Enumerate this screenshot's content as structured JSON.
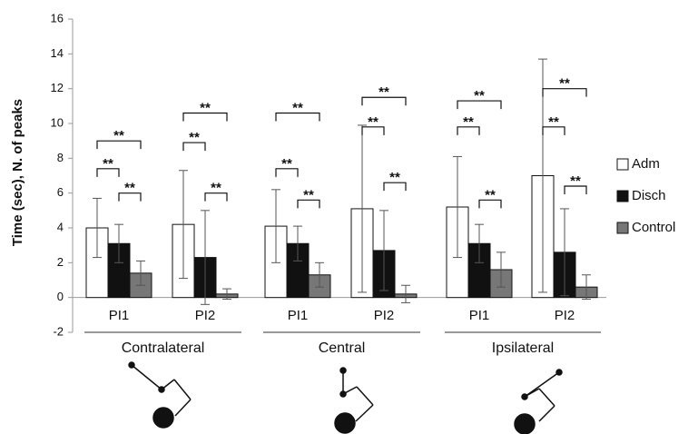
{
  "chart_data": {
    "type": "bar",
    "y_label": "Time (sec), N. of peaks",
    "categories": [
      "PI1",
      "PI2",
      "PI1",
      "PI2",
      "PI1",
      "PI2"
    ],
    "groups": [
      "Contralateral",
      "Central",
      "Ipsilateral"
    ],
    "series": [
      {
        "name": "Adm",
        "color": "#ffffff",
        "values": [
          4.0,
          4.2,
          4.1,
          5.1,
          5.2,
          7.0
        ],
        "errors": [
          1.7,
          3.1,
          2.1,
          4.8,
          2.9,
          6.7
        ]
      },
      {
        "name": "Disch",
        "color": "#111111",
        "values": [
          3.1,
          2.3,
          3.1,
          2.7,
          3.1,
          2.6
        ],
        "errors": [
          1.1,
          2.7,
          1.0,
          2.3,
          1.1,
          2.5
        ]
      },
      {
        "name": "Control",
        "color": "#777777",
        "values": [
          1.4,
          0.2,
          1.3,
          0.2,
          1.6,
          0.6
        ],
        "errors": [
          0.7,
          0.3,
          0.7,
          0.5,
          1.0,
          0.7
        ]
      }
    ],
    "brackets": [
      {
        "category": 0,
        "series": [
          0,
          1
        ],
        "y": 7.4,
        "label": "**"
      },
      {
        "category": 0,
        "series": [
          1,
          2
        ],
        "y": 6.0,
        "label": "**"
      },
      {
        "category": 0,
        "series": [
          0,
          2
        ],
        "y": 9.0,
        "label": "**"
      },
      {
        "category": 1,
        "series": [
          0,
          1
        ],
        "y": 8.9,
        "label": "**"
      },
      {
        "category": 1,
        "series": [
          1,
          2
        ],
        "y": 6.0,
        "label": "**"
      },
      {
        "category": 1,
        "series": [
          0,
          2
        ],
        "y": 10.6,
        "label": "**"
      },
      {
        "category": 2,
        "series": [
          0,
          1
        ],
        "y": 7.4,
        "label": "**"
      },
      {
        "category": 2,
        "series": [
          1,
          2
        ],
        "y": 5.6,
        "label": "**"
      },
      {
        "category": 2,
        "series": [
          0,
          2
        ],
        "y": 10.6,
        "label": "**"
      },
      {
        "category": 3,
        "series": [
          0,
          1
        ],
        "y": 9.8,
        "label": "**"
      },
      {
        "category": 3,
        "series": [
          1,
          2
        ],
        "y": 6.6,
        "label": "**"
      },
      {
        "category": 3,
        "series": [
          0,
          2
        ],
        "y": 11.5,
        "label": "**"
      },
      {
        "category": 4,
        "series": [
          0,
          1
        ],
        "y": 9.8,
        "label": "**"
      },
      {
        "category": 4,
        "series": [
          1,
          2
        ],
        "y": 5.6,
        "label": "**"
      },
      {
        "category": 4,
        "series": [
          0,
          2
        ],
        "y": 11.3,
        "label": "**"
      },
      {
        "category": 5,
        "series": [
          0,
          1
        ],
        "y": 9.8,
        "label": "**"
      },
      {
        "category": 5,
        "series": [
          1,
          2
        ],
        "y": 6.4,
        "label": "**"
      },
      {
        "category": 5,
        "series": [
          0,
          2
        ],
        "y": 12.0,
        "label": "**"
      }
    ],
    "ylim": [
      -2,
      16
    ],
    "yticks": [
      -2,
      0,
      2,
      4,
      6,
      8,
      10,
      12,
      14,
      16
    ]
  }
}
